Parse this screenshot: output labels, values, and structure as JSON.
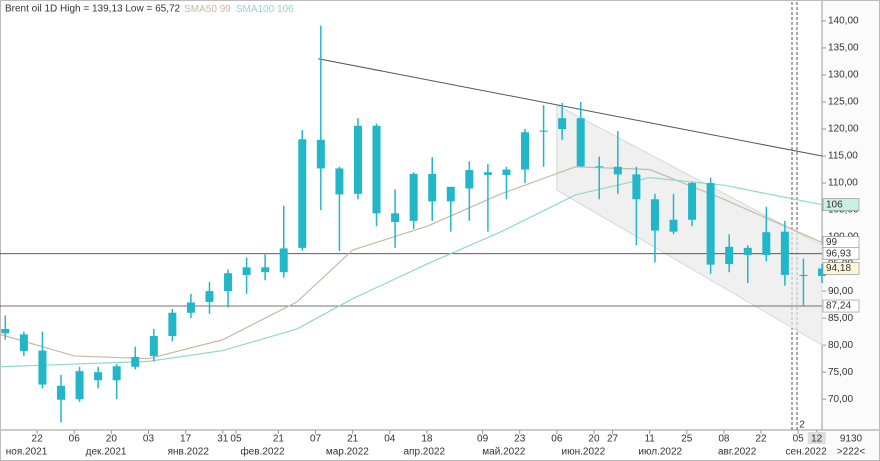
{
  "chart_data": {
    "type": "candlestick",
    "title": "Brent oil 1D High = 139,13 Low = 65,72",
    "xlim": [
      "2021-11-08",
      "2022-09-14"
    ],
    "ylim": [
      64.3,
      143.5
    ],
    "yticks": [
      {
        "value": 70,
        "label": "70,00"
      },
      {
        "value": 75,
        "label": "75,00"
      },
      {
        "value": 80,
        "label": "80,00"
      },
      {
        "value": 85,
        "label": "85,00"
      },
      {
        "value": 90,
        "label": "90,00"
      },
      {
        "value": 95,
        "label": "95,00"
      },
      {
        "value": 100,
        "label": "100,00"
      },
      {
        "value": 105,
        "label": "105,00"
      },
      {
        "value": 110,
        "label": "110,00"
      },
      {
        "value": 115,
        "label": "115,00"
      },
      {
        "value": 120,
        "label": "120,00"
      },
      {
        "value": 125,
        "label": "125,00"
      },
      {
        "value": 130,
        "label": "130,00"
      },
      {
        "value": 135,
        "label": "135,00"
      },
      {
        "value": 140,
        "label": "140,00"
      }
    ],
    "xticks": [
      {
        "value": "2021-11-22",
        "label": "22"
      },
      {
        "value": "2021-12-06",
        "label": "06"
      },
      {
        "value": "2021-12-20",
        "label": "20"
      },
      {
        "value": "2022-01-03",
        "label": "03"
      },
      {
        "value": "2022-01-17",
        "label": "17"
      },
      {
        "value": "2022-01-31",
        "label": "31"
      },
      {
        "value": "2022-02-05",
        "label": "05"
      },
      {
        "value": "2022-02-21",
        "label": "21"
      },
      {
        "value": "2022-03-07",
        "label": "07"
      },
      {
        "value": "2022-03-21",
        "label": "21"
      },
      {
        "value": "2022-04-04",
        "label": "04"
      },
      {
        "value": "2022-04-18",
        "label": "18"
      },
      {
        "value": "2022-05-09",
        "label": "09"
      },
      {
        "value": "2022-05-23",
        "label": "23"
      },
      {
        "value": "2022-06-06",
        "label": "06"
      },
      {
        "value": "2022-06-20",
        "label": "20"
      },
      {
        "value": "2022-06-27",
        "label": "27"
      },
      {
        "value": "2022-07-11",
        "label": "11"
      },
      {
        "value": "2022-07-25",
        "label": "25"
      },
      {
        "value": "2022-08-08",
        "label": "08"
      },
      {
        "value": "2022-08-22",
        "label": "22"
      },
      {
        "value": "2022-09-05",
        "label": "05"
      },
      {
        "value": "2022-09-12",
        "label": "12"
      }
    ],
    "month_labels": [
      {
        "value": "2021-11-18",
        "label": "ноя.2021"
      },
      {
        "value": "2021-12-18",
        "label": "дек.2021"
      },
      {
        "value": "2022-01-18",
        "label": "янв.2022"
      },
      {
        "value": "2022-02-15",
        "label": "фев.2022"
      },
      {
        "value": "2022-03-19",
        "label": "мар.2022"
      },
      {
        "value": "2022-04-17",
        "label": "апр.2022"
      },
      {
        "value": "2022-05-17",
        "label": "май.2022"
      },
      {
        "value": "2022-06-16",
        "label": "июн.2022"
      },
      {
        "value": "2022-07-15",
        "label": "июл.2022"
      },
      {
        "value": "2022-08-13",
        "label": "авг.2022"
      },
      {
        "value": "2022-09-08",
        "label": "сен.2022"
      }
    ],
    "ohlc": {
      "color": "#22b6c9",
      "x": [
        "2021-11-08",
        "2021-11-15",
        "2021-11-22",
        "2021-11-29",
        "2021-12-06",
        "2021-12-13",
        "2021-12-20",
        "2021-12-27",
        "2022-01-03",
        "2022-01-10",
        "2022-01-17",
        "2022-01-24",
        "2022-01-31",
        "2022-02-07",
        "2022-02-14",
        "2022-02-21",
        "2022-02-28",
        "2022-03-07",
        "2022-03-14",
        "2022-03-21",
        "2022-03-28",
        "2022-04-04",
        "2022-04-11",
        "2022-04-18",
        "2022-04-25",
        "2022-05-02",
        "2022-05-09",
        "2022-05-16",
        "2022-05-23",
        "2022-05-30",
        "2022-06-06",
        "2022-06-13",
        "2022-06-20",
        "2022-06-27",
        "2022-07-04",
        "2022-07-11",
        "2022-07-18",
        "2022-07-25",
        "2022-08-01",
        "2022-08-08",
        "2022-08-15",
        "2022-08-22",
        "2022-08-29",
        "2022-09-05",
        "2022-09-12"
      ],
      "open": [
        83,
        82,
        79,
        72.5,
        70,
        75,
        73.5,
        76,
        78,
        81.7,
        86,
        88,
        90,
        93,
        94.4,
        93.5,
        98,
        118,
        112.7,
        108,
        120.6,
        104.4,
        103,
        111.7,
        106.6,
        109,
        112,
        111.5,
        112.5,
        119.5,
        120,
        122,
        113,
        113,
        111.6,
        107,
        101,
        103.2,
        110,
        95,
        98,
        96.7,
        101,
        93,
        92.8
      ],
      "high": [
        85.5,
        82.5,
        82.5,
        74.5,
        76,
        76,
        76.5,
        79.7,
        83,
        86.7,
        89.5,
        91.7,
        94,
        96.2,
        97,
        105.8,
        119.8,
        139.13,
        113,
        122,
        121,
        108.8,
        112,
        114.8,
        109.3,
        114,
        113.5,
        113,
        120,
        124.4,
        124.8,
        125,
        114.9,
        119.6,
        113,
        108,
        108,
        110.2,
        111,
        100.5,
        98.5,
        105.6,
        103,
        96,
        95
      ],
      "low": [
        81,
        78,
        72,
        65.72,
        69.5,
        72,
        70,
        75.5,
        77,
        80.7,
        85,
        85.8,
        87,
        89.5,
        92,
        92.5,
        97.5,
        105,
        97.4,
        107,
        102,
        98,
        101.5,
        103,
        101,
        103,
        101,
        107,
        110,
        113,
        118,
        113,
        107,
        108,
        98.5,
        95.3,
        100.5,
        102,
        93.2,
        93.5,
        91.5,
        95.5,
        91,
        87.24,
        91.5
      ],
      "close": [
        82.2,
        78.9,
        72.7,
        69.9,
        75.2,
        73.5,
        76.1,
        77.8,
        81.7,
        86,
        87.9,
        90,
        93.3,
        94.4,
        93.5,
        97.9,
        118.1,
        112.7,
        107.9,
        120.6,
        104.4,
        102.8,
        111.7,
        106.6,
        109.3,
        112.4,
        111.5,
        112.5,
        119.4,
        119.7,
        122,
        113.1,
        113.1,
        111.6,
        107,
        101.2,
        103.2,
        110,
        94.9,
        98.2,
        96.7,
        100.9,
        93,
        92.8,
        94.18
      ]
    },
    "last_price": {
      "value": 94.18,
      "label": "94,18"
    },
    "sma_x": [
      "2021-11-08",
      "2021-12-06",
      "2022-01-03",
      "2022-01-31",
      "2022-02-28",
      "2022-03-21",
      "2022-04-18",
      "2022-05-16",
      "2022-06-13",
      "2022-07-11",
      "2022-08-08",
      "2022-09-14"
    ],
    "series": [
      {
        "name": "SMA50",
        "color": "#c9b9a3",
        "last": 99,
        "values": [
          82,
          78,
          77.5,
          81,
          88,
          97.6,
          102,
          108,
          113,
          112.5,
          107,
          99
        ]
      },
      {
        "name": "SMA100",
        "color": "#8fd9c9",
        "last": 106,
        "values": [
          76,
          76.5,
          77,
          79,
          83,
          88.6,
          95,
          101,
          107.8,
          111,
          109.6,
          106
        ]
      }
    ],
    "levels": [
      {
        "value": 96.93,
        "label": "96,93"
      },
      {
        "value": 87.24,
        "label": "87,24"
      }
    ],
    "trendline": [
      [
        "2022-03-08",
        133
      ],
      [
        "2022-09-14",
        115
      ]
    ],
    "channel": {
      "upper": [
        [
          "2022-06-06",
          124.4
        ],
        [
          "2022-09-14",
          98.5
        ]
      ],
      "lower": [
        [
          "2022-06-06",
          108.7
        ],
        [
          "2022-09-14",
          80
        ]
      ]
    },
    "corner_texts": [
      "9130",
      ">222<",
      "2"
    ]
  }
}
